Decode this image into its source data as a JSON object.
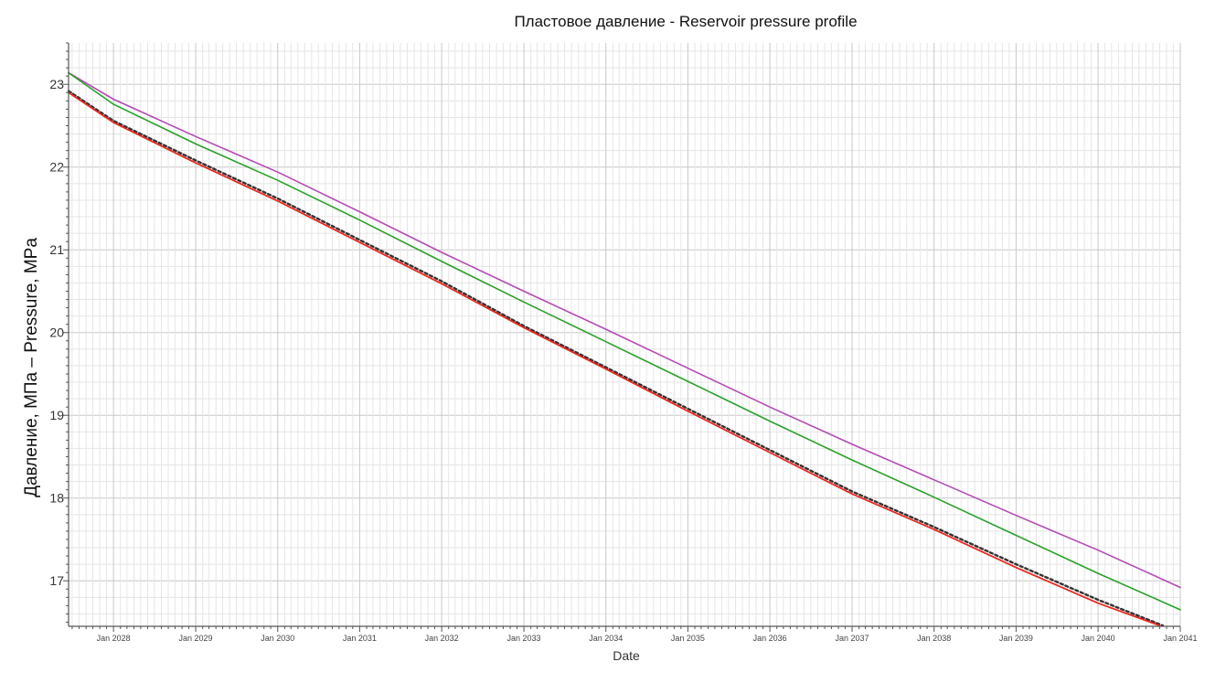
{
  "chart_data": {
    "type": "line",
    "title": "Пластовое давление - Reservoir pressure profile",
    "xlabel": "Date",
    "ylabel": "Давление, МПа – Pressure, MPa",
    "xlim": [
      "2027-06-15",
      "2041-01-01"
    ],
    "ylim": [
      16.45,
      23.5
    ],
    "y_ticks": [
      17,
      18,
      19,
      20,
      21,
      22,
      23
    ],
    "x_ticks": [
      {
        "date": "2028-01-01",
        "label": "Jan 2028"
      },
      {
        "date": "2029-01-01",
        "label": "Jan 2029"
      },
      {
        "date": "2030-01-01",
        "label": "Jan 2030"
      },
      {
        "date": "2031-01-01",
        "label": "Jan 2031"
      },
      {
        "date": "2032-01-01",
        "label": "Jan 2032"
      },
      {
        "date": "2033-01-01",
        "label": "Jan 2033"
      },
      {
        "date": "2034-01-01",
        "label": "Jan 2034"
      },
      {
        "date": "2035-01-01",
        "label": "Jan 2035"
      },
      {
        "date": "2036-01-01",
        "label": "Jan 2036"
      },
      {
        "date": "2037-01-01",
        "label": "Jan 2037"
      },
      {
        "date": "2038-01-01",
        "label": "Jan 2038"
      },
      {
        "date": "2039-01-01",
        "label": "Jan 2039"
      },
      {
        "date": "2040-01-01",
        "label": "Jan 2040"
      },
      {
        "date": "2041-01-01",
        "label": "Jan 2041"
      }
    ],
    "grid": true,
    "series": [
      {
        "color": "#b44ab4",
        "dash": "",
        "width": 1.6,
        "x": [
          "2027-06-15",
          "2028-01-01",
          "2029-01-01",
          "2030-01-01",
          "2031-01-01",
          "2032-01-01",
          "2033-01-01",
          "2034-01-01",
          "2035-01-01",
          "2036-01-01",
          "2037-01-01",
          "2038-01-01",
          "2039-01-01",
          "2040-01-01",
          "2041-01-01"
        ],
        "y": [
          23.14,
          22.82,
          22.37,
          21.94,
          21.46,
          20.97,
          20.5,
          20.04,
          19.57,
          19.1,
          18.65,
          18.22,
          17.79,
          17.37,
          16.92
        ]
      },
      {
        "color": "#2aa02a",
        "dash": "",
        "width": 1.6,
        "x": [
          "2027-06-15",
          "2028-01-01",
          "2029-01-01",
          "2030-01-01",
          "2031-01-01",
          "2032-01-01",
          "2033-01-01",
          "2034-01-01",
          "2035-01-01",
          "2036-01-01",
          "2037-01-01",
          "2038-01-01",
          "2039-01-01",
          "2040-01-01",
          "2041-01-01"
        ],
        "y": [
          23.14,
          22.76,
          22.28,
          21.84,
          21.36,
          20.86,
          20.37,
          19.89,
          19.41,
          18.93,
          18.46,
          18.01,
          17.55,
          17.09,
          16.65
        ]
      },
      {
        "color": "#333333",
        "dash": "3,3",
        "width": 2.4,
        "x": [
          "2027-06-15",
          "2028-01-01",
          "2029-01-01",
          "2030-01-01",
          "2031-01-01",
          "2032-01-01",
          "2033-01-01",
          "2034-01-01",
          "2035-01-01",
          "2036-01-01",
          "2037-01-01",
          "2038-01-01",
          "2039-01-01",
          "2040-01-01",
          "2040-10-15"
        ],
        "y": [
          22.92,
          22.56,
          22.08,
          21.62,
          21.12,
          20.62,
          20.08,
          19.58,
          19.08,
          18.58,
          18.08,
          17.65,
          17.2,
          16.77,
          16.46
        ]
      },
      {
        "color": "#e8281e",
        "dash": "",
        "width": 1.8,
        "x": [
          "2027-06-15",
          "2028-01-01",
          "2029-01-01",
          "2030-01-01",
          "2031-01-01",
          "2032-01-01",
          "2033-01-01",
          "2034-01-01",
          "2035-01-01",
          "2036-01-01",
          "2037-01-01",
          "2038-01-01",
          "2039-01-01",
          "2040-01-01",
          "2040-10-01"
        ],
        "y": [
          22.9,
          22.54,
          22.05,
          21.59,
          21.09,
          20.59,
          20.06,
          19.56,
          19.05,
          18.55,
          18.05,
          17.62,
          17.16,
          16.73,
          16.46
        ]
      }
    ]
  }
}
